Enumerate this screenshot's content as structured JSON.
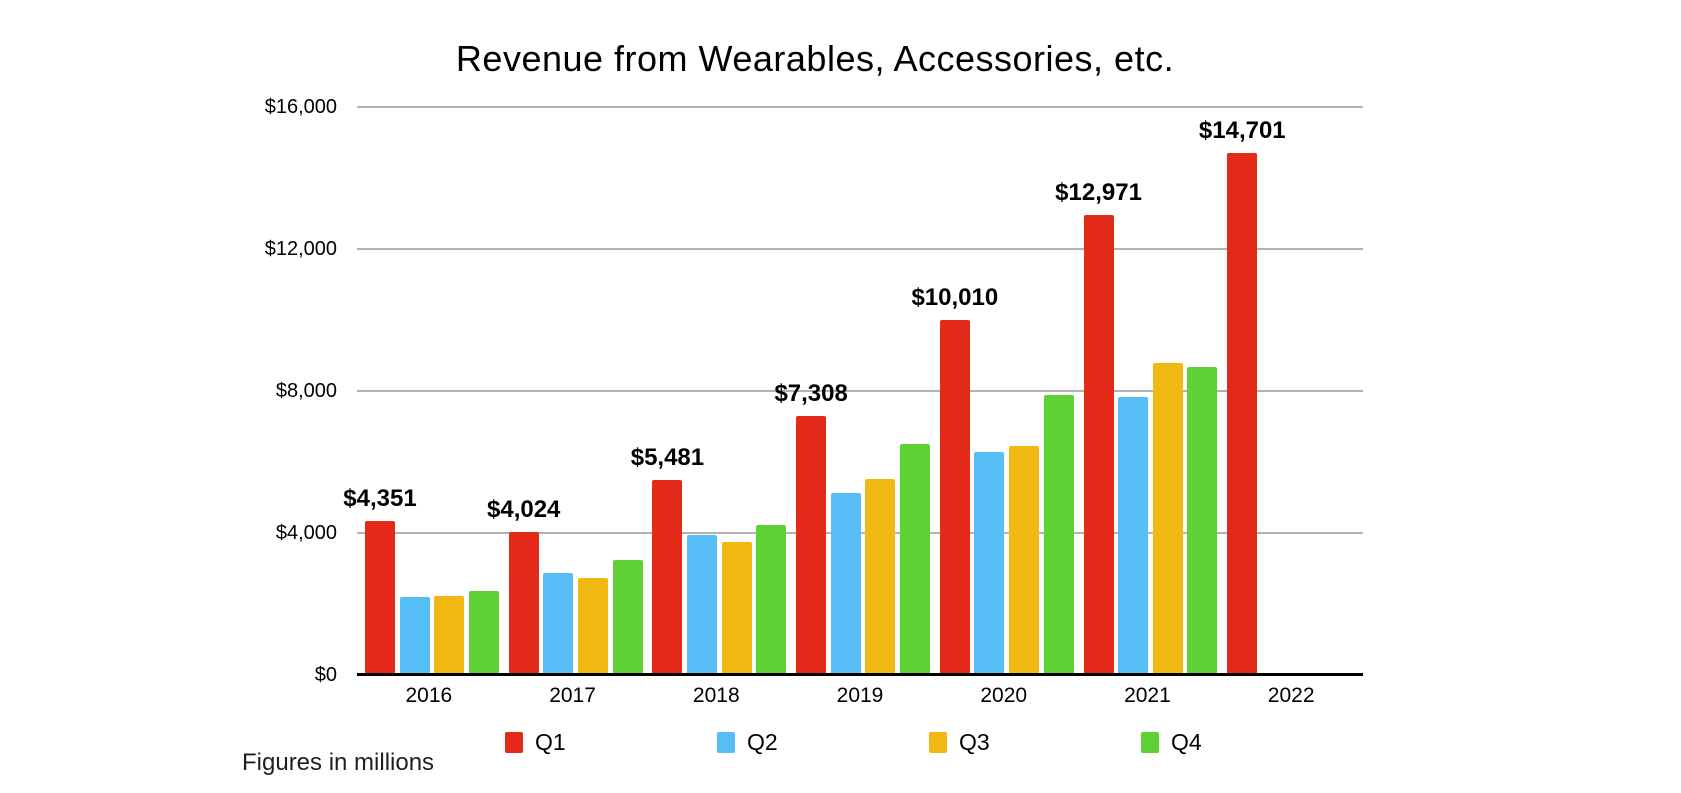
{
  "title": "Revenue from Wearables, Accessories, etc.",
  "footnote": "Figures in millions",
  "chart_data": {
    "type": "bar",
    "title": "Revenue from Wearables, Accessories, etc.",
    "footnote": "Figures in millions",
    "categories": [
      "2016",
      "2017",
      "2018",
      "2019",
      "2020",
      "2021",
      "2022"
    ],
    "series": [
      {
        "name": "Q1",
        "color": "#e32a19",
        "values": [
          4351,
          4024,
          5481,
          7308,
          10010,
          12971,
          14701
        ],
        "labels": [
          "$4,351",
          "$4,024",
          "$5,481",
          "$7,308",
          "$10,010",
          "$12,971",
          "$14,701"
        ]
      },
      {
        "name": "Q2",
        "color": "#57bdf7",
        "values": [
          2189,
          2873,
          3954,
          5129,
          6284,
          7836,
          null
        ],
        "labels": null
      },
      {
        "name": "Q3",
        "color": "#f3b712",
        "values": [
          2219,
          2735,
          3740,
          5525,
          6450,
          8775,
          null
        ],
        "labels": null
      },
      {
        "name": "Q4",
        "color": "#5fd134",
        "values": [
          2373,
          3231,
          4234,
          6520,
          7876,
          8690,
          null
        ],
        "labels": null
      }
    ],
    "xlabel": "",
    "ylabel": "",
    "ylim": [
      0,
      16000
    ],
    "yticks": [
      {
        "value": 16000,
        "label": "$16,000"
      },
      {
        "value": 12000,
        "label": "$12,000"
      },
      {
        "value": 8000,
        "label": "$8,000"
      },
      {
        "value": 4000,
        "label": "$4,000"
      },
      {
        "value": 0,
        "label": "$0"
      }
    ],
    "grid": "horizontal",
    "gridline_color": "#b2b2b2",
    "legend_position": "bottom"
  }
}
